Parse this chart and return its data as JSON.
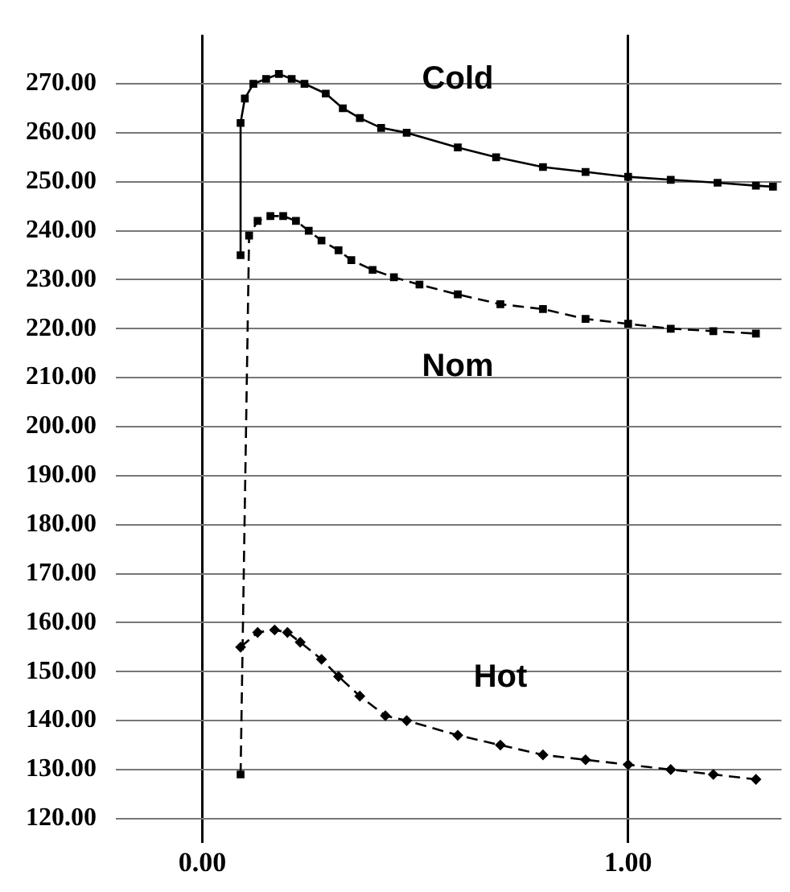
{
  "chart_data": {
    "type": "line",
    "xlim": [
      -0.15,
      1.36
    ],
    "ylim": [
      115,
      280
    ],
    "xticks": [
      {
        "value": 0,
        "label": "0.00"
      },
      {
        "value": 1,
        "label": "1.00"
      }
    ],
    "yticks": [
      {
        "value": 120,
        "label": "120.00"
      },
      {
        "value": 130,
        "label": "130.00"
      },
      {
        "value": 140,
        "label": "140.00"
      },
      {
        "value": 150,
        "label": "150.00"
      },
      {
        "value": 160,
        "label": "160.00"
      },
      {
        "value": 170,
        "label": "170.00"
      },
      {
        "value": 180,
        "label": "180.00"
      },
      {
        "value": 190,
        "label": "190.00"
      },
      {
        "value": 200,
        "label": "200.00"
      },
      {
        "value": 210,
        "label": "210.00"
      },
      {
        "value": 220,
        "label": "220.00"
      },
      {
        "value": 230,
        "label": "230.00"
      },
      {
        "value": 240,
        "label": "240.00"
      },
      {
        "value": 250,
        "label": "250.00"
      },
      {
        "value": 260,
        "label": "260.00"
      },
      {
        "value": 270,
        "label": "270.00"
      }
    ],
    "grid": true,
    "legend": false,
    "series": [
      {
        "name": "Cold",
        "color": "#000000",
        "marker": "square",
        "line_style": "solid",
        "x": [
          0.09,
          0.09,
          0.1,
          0.12,
          0.15,
          0.18,
          0.21,
          0.24,
          0.29,
          0.33,
          0.37,
          0.42,
          0.48,
          0.6,
          0.69,
          0.8,
          0.9,
          1.0,
          1.1,
          1.21,
          1.3,
          1.34
        ],
        "values": [
          235,
          262,
          267,
          270,
          271,
          272,
          271,
          270,
          268,
          265,
          263,
          261,
          260,
          257,
          255,
          253,
          252,
          251,
          250.4,
          249.8,
          249.2,
          249
        ]
      },
      {
        "name": "Nom",
        "color": "#000000",
        "marker": "square",
        "line_style": "dashed",
        "x": [
          0.09,
          0.11,
          0.13,
          0.16,
          0.19,
          0.22,
          0.25,
          0.28,
          0.32,
          0.35,
          0.4,
          0.45,
          0.51,
          0.6,
          0.7,
          0.8,
          0.9,
          1.0,
          1.1,
          1.2,
          1.3
        ],
        "values": [
          129,
          239,
          242,
          243,
          243,
          242,
          240,
          238,
          236,
          234,
          232,
          230.5,
          229,
          227,
          225,
          224,
          222,
          221,
          220,
          219.5,
          219
        ]
      },
      {
        "name": "Hot",
        "color": "#000000",
        "marker": "diamond",
        "line_style": "dashed",
        "x": [
          0.09,
          0.13,
          0.17,
          0.2,
          0.23,
          0.28,
          0.32,
          0.37,
          0.43,
          0.48,
          0.6,
          0.7,
          0.8,
          0.9,
          1.0,
          1.1,
          1.2,
          1.3
        ],
        "values": [
          155,
          158,
          158.5,
          158,
          156,
          152.5,
          149,
          145,
          141,
          140,
          137,
          135,
          133,
          132,
          131,
          130,
          129,
          128
        ]
      }
    ]
  }
}
